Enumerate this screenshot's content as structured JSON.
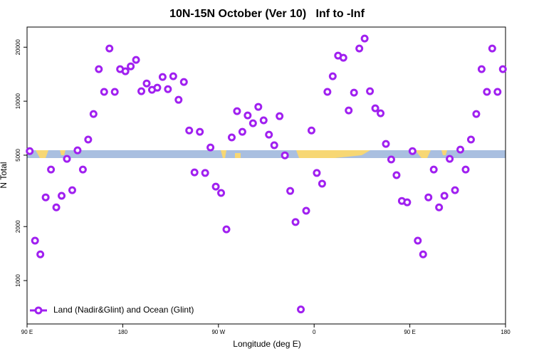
{
  "chart_data": {
    "type": "scatter",
    "title": "10N-15N October (Ver 10)   Inf to -Inf",
    "x_label": "Longitude (deg E)",
    "y_label": "N Total",
    "log_y": true,
    "legend": "bottom-left",
    "x": [
      92.5,
      97.5,
      102.5,
      107.5,
      112.5,
      117.5,
      122.5,
      127.5,
      132.5,
      137.5,
      142.5,
      147.5,
      152.5,
      157.5,
      162.5,
      167.5,
      172.5,
      177.5,
      182.5,
      187.5,
      192.5,
      197.5,
      202.5,
      207.5,
      212.5,
      217.5,
      222.5,
      227.5,
      232.5,
      237.5,
      242.5,
      247.5,
      252.5,
      257.5,
      262.5,
      267.5,
      272.5,
      277.5,
      282.5,
      287.5,
      292.5,
      297.5,
      302.5,
      307.5,
      312.5,
      317.5,
      322.5,
      327.5,
      332.5,
      337.5,
      342.5,
      347.5,
      352.5,
      357.5,
      362.5,
      367.5,
      372.5,
      377.5,
      382.5,
      387.5,
      392.5,
      397.5,
      402.5,
      407.5,
      412.5,
      417.5,
      422.5,
      427.5,
      432.5,
      437.5,
      442.5,
      447.5,
      452.5,
      457.5,
      462.5,
      467.5,
      472.5,
      477.5,
      482.5,
      487.5,
      492.5,
      497.5,
      502.5,
      507.5,
      512.5,
      517.5,
      522.5,
      527.5,
      532.5,
      537.5
    ],
    "series": [
      {
        "name": "Land (Nadir&Glint) and Ocean (Glint)",
        "color": "#a020f0",
        "values": [
          5270,
          1670,
          1400,
          2910,
          4160,
          2560,
          2970,
          4770,
          3190,
          5320,
          4160,
          6110,
          8480,
          15090,
          11270,
          19660,
          11270,
          15090,
          14680,
          15640,
          16990,
          11370,
          12560,
          11570,
          11890,
          13640,
          11670,
          13770,
          10180,
          12800,
          6870,
          4010,
          6750,
          3980,
          5520,
          3340,
          3080,
          1930,
          6280,
          8800,
          6750,
          8330,
          7530,
          9300,
          7820,
          6510,
          5680,
          8250,
          4990,
          3160,
          2120,
          690,
          2450,
          6870,
          3980,
          3470,
          11270,
          13770,
          17950,
          17460,
          8880,
          11160,
          19660,
          22350,
          11370,
          9130,
          8560,
          5780,
          4730,
          3870,
          2780,
          2730,
          5270,
          1670,
          1400,
          2910,
          4160,
          2560,
          2970,
          4770,
          3190,
          5370,
          4160,
          6110,
          8480,
          15090,
          11270,
          19660,
          11270,
          15090
        ]
      }
    ],
    "xlim": [
      90,
      540
    ],
    "xticks": [
      {
        "value": 90,
        "label": "90 E"
      },
      180,
      {
        "value": 270,
        "label": "90 W"
      },
      {
        "value": 360,
        "label": "0"
      },
      {
        "value": 450,
        "label": "90 E"
      },
      {
        "value": 540,
        "label": "180"
      }
    ],
    "ylim": [
      573,
      25900
    ],
    "yticks": [
      1000,
      2000,
      5000,
      10000,
      20000
    ]
  }
}
